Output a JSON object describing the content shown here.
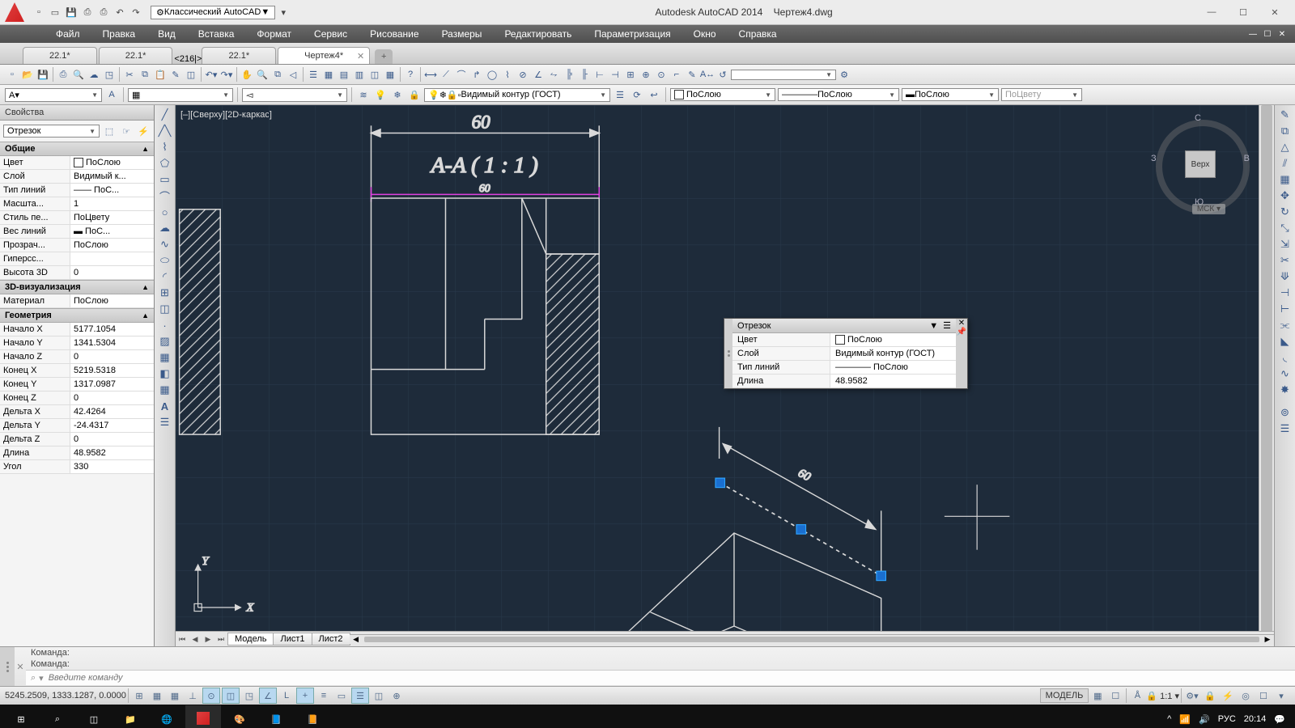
{
  "app": {
    "title_left": "Autodesk AutoCAD 2014",
    "title_file": "Чертеж4.dwg",
    "workspace": "Классический AutoCAD"
  },
  "menu": {
    "items": [
      "Файл",
      "Правка",
      "Вид",
      "Вставка",
      "Формат",
      "Сервис",
      "Рисование",
      "Размеры",
      "Редактировать",
      "Параметризация",
      "Окно",
      "Справка"
    ]
  },
  "tabs": {
    "items": [
      "22.1*",
      "22.1*",
      "22.1*",
      "Чертеж4*"
    ],
    "active": 3
  },
  "layers": {
    "current": "Видимый контур (ГОСТ)",
    "color_combo": "ПоСлою",
    "ltype": "ПоСлою",
    "lweight": "ПоСлою",
    "plot": "ПоЦвету"
  },
  "prop": {
    "panel_title": "Свойства",
    "obj_type": "Отрезок",
    "sections": {
      "general": {
        "title": "Общие",
        "rows": [
          {
            "k": "Цвет",
            "v": "ПоСлою",
            "sw": "#ffffff"
          },
          {
            "k": "Слой",
            "v": "Видимый к..."
          },
          {
            "k": "Тип линий",
            "v": "—— ПоС..."
          },
          {
            "k": "Масшта...",
            "v": "1"
          },
          {
            "k": "Стиль пе...",
            "v": "ПоЦвету"
          },
          {
            "k": "Вес линий",
            "v": "▬ ПоС..."
          },
          {
            "k": "Прозрач...",
            "v": "ПоСлою"
          },
          {
            "k": "Гиперсс...",
            "v": ""
          },
          {
            "k": "Высота 3D",
            "v": "0"
          }
        ]
      },
      "viz": {
        "title": "3D-визуализация",
        "rows": [
          {
            "k": "Материал",
            "v": "ПоСлою"
          }
        ]
      },
      "geom": {
        "title": "Геометрия",
        "rows": [
          {
            "k": "Начало X",
            "v": "5177.1054"
          },
          {
            "k": "Начало Y",
            "v": "1341.5304"
          },
          {
            "k": "Начало Z",
            "v": "0"
          },
          {
            "k": "Конец X",
            "v": "5219.5318"
          },
          {
            "k": "Конец Y",
            "v": "1317.0987"
          },
          {
            "k": "Конец Z",
            "v": "0"
          },
          {
            "k": "Дельта X",
            "v": "42.4264"
          },
          {
            "k": "Дельта Y",
            "v": "-24.4317"
          },
          {
            "k": "Дельта Z",
            "v": "0"
          },
          {
            "k": "Длина",
            "v": "48.9582"
          },
          {
            "k": "Угол",
            "v": "330"
          }
        ]
      }
    }
  },
  "canvas": {
    "view_label": "[–][Сверху][2D-каркас]",
    "dim_label": "60",
    "section_label": "A-A ( 1 : 1 )",
    "sub_dim": "60",
    "iso_dim": "60",
    "bg": "#1e2b3a",
    "line_color": "#d9d9d9",
    "dim_color": "#e0e0e0",
    "magenta": "#e040e0",
    "grip_color": "#2da3ff",
    "grip_fill": "#1a6fd0",
    "ucs": {
      "x": "X",
      "y": "Y"
    }
  },
  "qprop": {
    "title": "Отрезок",
    "rows": [
      {
        "k": "Цвет",
        "v": "ПоСлою",
        "sw": "#ffffff"
      },
      {
        "k": "Слой",
        "v": "Видимый контур (ГОСТ)"
      },
      {
        "k": "Тип линий",
        "v": "———— ПоСлою"
      },
      {
        "k": "Длина",
        "v": "48.9582"
      }
    ]
  },
  "navcube": {
    "n": "С",
    "e": "В",
    "s": "Ю",
    "w": "З",
    "top": "Верх",
    "wcs": "МСК ▾"
  },
  "model_tabs": {
    "items": [
      "Модель",
      "Лист1",
      "Лист2"
    ],
    "active": 0
  },
  "cmd": {
    "prompt": "Команда:",
    "placeholder": "Введите команду"
  },
  "status": {
    "coords": "5245.2509, 1333.1287, 0.0000",
    "model_btn": "МОДЕЛЬ",
    "anno": "1:1"
  },
  "task": {
    "lang": "РУС",
    "time": "20:14"
  }
}
